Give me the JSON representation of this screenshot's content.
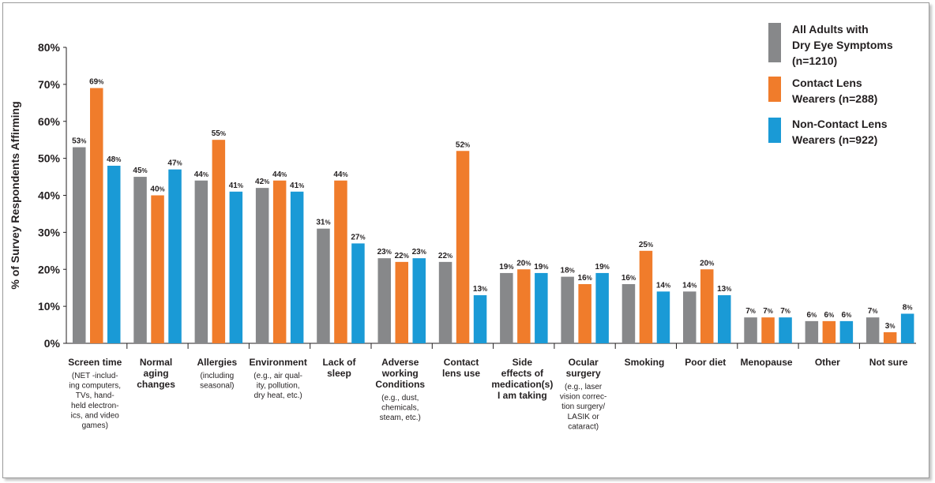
{
  "chart_data": {
    "type": "bar",
    "ylabel": "% of Survey Respondents Affirming",
    "ylim": [
      0,
      80
    ],
    "yticks": [
      "0%",
      "10%",
      "20%",
      "30%",
      "40%",
      "50%",
      "60%",
      "70%",
      "80%"
    ],
    "grid": false,
    "legend_position": "top-right",
    "categories": [
      {
        "label": "Screen time",
        "sub": "(NET -includ-\ning computers,\nTVs, hand-\nheld electron-\nics, and video\ngames)"
      },
      {
        "label": "Normal\naging\nchanges",
        "sub": ""
      },
      {
        "label": "Allergies",
        "sub": "(including\nseasonal)"
      },
      {
        "label": "Environment",
        "sub": "(e.g., air qual-\nity, pollution,\ndry heat, etc.)"
      },
      {
        "label": "Lack of\nsleep",
        "sub": ""
      },
      {
        "label": "Adverse\nworking\nConditions",
        "sub": "(e.g., dust,\nchemicals,\nsteam, etc.)"
      },
      {
        "label": "Contact\nlens use",
        "sub": ""
      },
      {
        "label": "Side\neffects of\nmedication(s)\nI am taking",
        "sub": ""
      },
      {
        "label": "Ocular\nsurgery",
        "sub": "(e.g., laser\nvision correc-\ntion surgery/\nLASIK or\ncataract)"
      },
      {
        "label": "Smoking",
        "sub": ""
      },
      {
        "label": "Poor diet",
        "sub": ""
      },
      {
        "label": "Menopause",
        "sub": ""
      },
      {
        "label": "Other",
        "sub": ""
      },
      {
        "label": "Not sure",
        "sub": ""
      }
    ],
    "series": [
      {
        "name": "All Adults with\nDry Eye Symptoms\n(n=1210)",
        "color": "#87888a",
        "values": [
          53,
          45,
          44,
          42,
          31,
          23,
          22,
          19,
          18,
          16,
          14,
          7,
          6,
          7
        ]
      },
      {
        "name": "Contact Lens\nWearers (n=288)",
        "color": "#f07c2b",
        "values": [
          69,
          40,
          55,
          44,
          44,
          22,
          52,
          20,
          16,
          25,
          20,
          7,
          6,
          3
        ]
      },
      {
        "name": "Non-Contact Lens\nWearers (n=922)",
        "color": "#1a9ad6",
        "values": [
          48,
          47,
          41,
          41,
          27,
          23,
          13,
          19,
          19,
          14,
          13,
          7,
          6,
          8
        ]
      }
    ]
  }
}
